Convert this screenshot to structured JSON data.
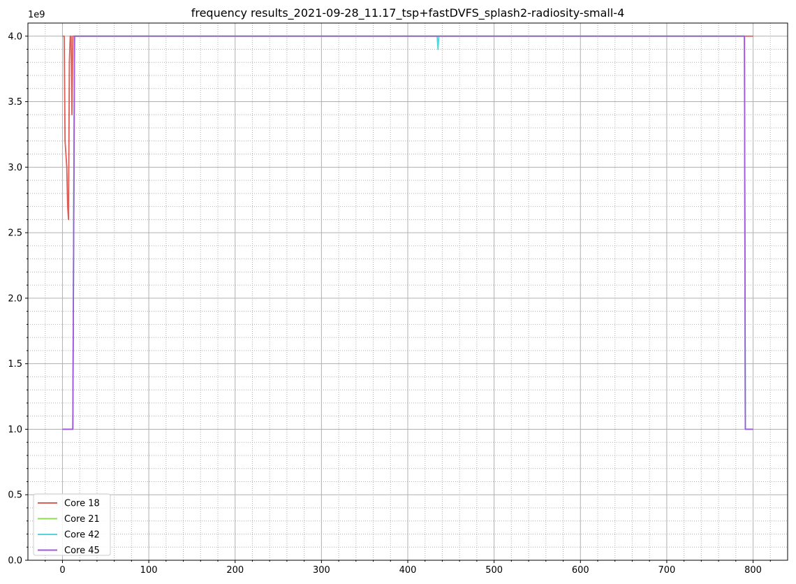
{
  "chart_data": {
    "type": "line",
    "title": "frequency results_2021-09-28_11.17_tsp+fastDVFS_splash2-radiosity-small-4",
    "xlabel": "",
    "ylabel": "",
    "y_offset_label": "1e9",
    "xlim": [
      -40,
      840
    ],
    "ylim": [
      0,
      4100000000
    ],
    "x_ticks": [
      0,
      100,
      200,
      300,
      400,
      500,
      600,
      700,
      800
    ],
    "y_ticks": [
      0,
      500000000,
      1000000000,
      1500000000,
      2000000000,
      2500000000,
      3000000000,
      3500000000,
      4000000000
    ],
    "x_tick_labels": [
      "0",
      "100",
      "200",
      "300",
      "400",
      "500",
      "600",
      "700",
      "800"
    ],
    "y_tick_labels": [
      "0.0",
      "0.5",
      "1.0",
      "1.5",
      "2.0",
      "2.5",
      "3.0",
      "3.5",
      "4.0"
    ],
    "grid": "major solid, minor dotted",
    "legend_position": "lower-left",
    "series": [
      {
        "name": "Core 18",
        "color": "#db5f57",
        "points": [
          [
            0,
            4000000000
          ],
          [
            2,
            4000000000
          ],
          [
            3,
            3200000000
          ],
          [
            5,
            3000000000
          ],
          [
            6,
            2700000000
          ],
          [
            7,
            2600000000
          ],
          [
            8,
            3800000000
          ],
          [
            9,
            4000000000
          ],
          [
            10,
            4000000000
          ],
          [
            11,
            3400000000
          ],
          [
            12,
            4000000000
          ],
          [
            800,
            4000000000
          ]
        ]
      },
      {
        "name": "Core 21",
        "color": "#91db57",
        "points": [
          [
            0,
            1000000000
          ],
          [
            12,
            1000000000
          ],
          [
            14,
            4000000000
          ],
          [
            790,
            4000000000
          ],
          [
            791,
            1000000000
          ],
          [
            800,
            1000000000
          ]
        ]
      },
      {
        "name": "Core 42",
        "color": "#57d3db",
        "points": [
          [
            0,
            1000000000
          ],
          [
            12,
            1000000000
          ],
          [
            14,
            4000000000
          ],
          [
            434,
            4000000000
          ],
          [
            435,
            3900000000
          ],
          [
            436,
            4000000000
          ],
          [
            790,
            4000000000
          ],
          [
            791,
            1000000000
          ],
          [
            800,
            1000000000
          ]
        ]
      },
      {
        "name": "Core 45",
        "color": "#a157db",
        "points": [
          [
            0,
            1000000000
          ],
          [
            12,
            1000000000
          ],
          [
            14,
            4000000000
          ],
          [
            790,
            4000000000
          ],
          [
            791,
            1000000000
          ],
          [
            800,
            1000000000
          ]
        ]
      }
    ]
  }
}
